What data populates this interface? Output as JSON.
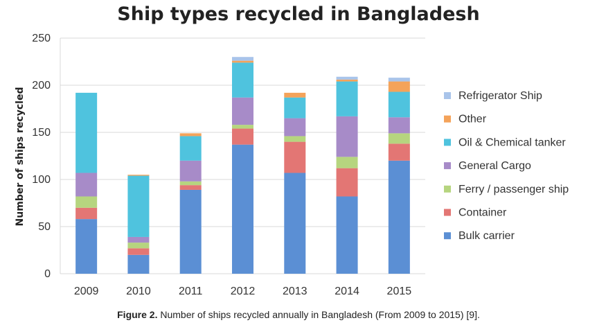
{
  "caption": {
    "label": "Figure 2.",
    "text": "Number of ships recycled annually in Bangladesh (From 2009 to 2015) [9]."
  },
  "chart_data": {
    "type": "bar",
    "stacked": true,
    "title": "Ship types recycled in Bangladesh",
    "xlabel": "",
    "ylabel": "Number of ships recycled",
    "ylim": [
      0,
      250
    ],
    "yticks": [
      0,
      50,
      100,
      150,
      200,
      250
    ],
    "grid": true,
    "legend_position": "right",
    "categories": [
      "2009",
      "2010",
      "2011",
      "2012",
      "2013",
      "2014",
      "2015"
    ],
    "series": [
      {
        "name": "Bulk carrier",
        "color": "#5b8fd4",
        "values": [
          58,
          20,
          89,
          137,
          107,
          82,
          120
        ]
      },
      {
        "name": "Container",
        "color": "#e37674",
        "values": [
          12,
          7,
          5,
          17,
          33,
          30,
          18
        ]
      },
      {
        "name": "Ferry / passenger ship",
        "color": "#b6d57f",
        "values": [
          12,
          6,
          4,
          4,
          6,
          12,
          11
        ]
      },
      {
        "name": "General Cargo",
        "color": "#a78bc8",
        "values": [
          25,
          6,
          22,
          29,
          19,
          43,
          17
        ]
      },
      {
        "name": "Oil & Chemical tanker",
        "color": "#4fc3de",
        "values": [
          85,
          65,
          26,
          37,
          22,
          37,
          27
        ]
      },
      {
        "name": "Other",
        "color": "#f4a35a",
        "values": [
          0,
          1,
          3,
          2,
          5,
          2,
          11
        ]
      },
      {
        "name": "Refrigerator Ship",
        "color": "#a9c4ea",
        "values": [
          0,
          0,
          0,
          4,
          0,
          3,
          4
        ]
      }
    ],
    "legend_order": [
      "Refrigerator Ship",
      "Other",
      "Oil & Chemical tanker",
      "General Cargo",
      "Ferry / passenger ship",
      "Container",
      "Bulk carrier"
    ]
  }
}
